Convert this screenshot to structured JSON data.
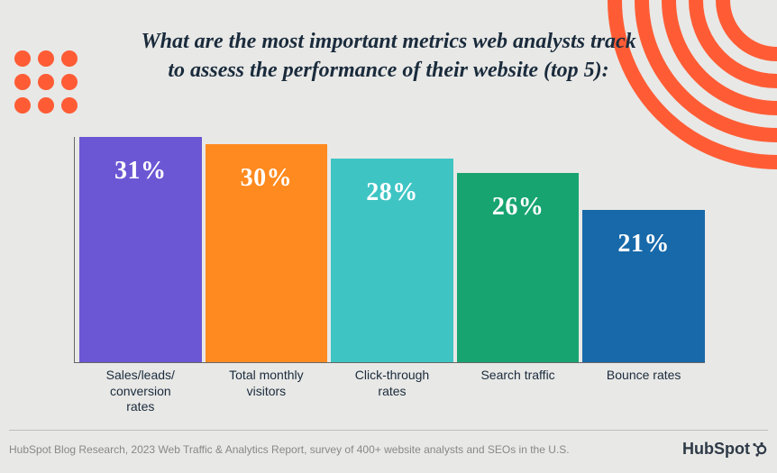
{
  "background_color": "#e8e8e6",
  "accent_color": "#ff5c35",
  "title": "What are the most important metrics web analysts track to assess the performance of their website (top 5):",
  "title_color": "#1a2b3c",
  "title_fontsize": 24,
  "chart": {
    "type": "bar",
    "max_value": 31,
    "axis_color": "#666666",
    "value_color": "#ffffff",
    "value_fontsize": 28,
    "label_color": "#1a2b3c",
    "label_fontsize": 14,
    "bar_gap": 4,
    "bars": [
      {
        "label": "Sales/leads/\nconversion\nrates",
        "value": 31,
        "display": "31%",
        "color": "#6b57d4"
      },
      {
        "label": "Total monthly\nvisitors",
        "value": 30,
        "display": "30%",
        "color": "#ff8a1f"
      },
      {
        "label": "Click-through\nrates",
        "value": 28,
        "display": "28%",
        "color": "#3fc4c4"
      },
      {
        "label": "Search traffic",
        "value": 26,
        "display": "26%",
        "color": "#17a471"
      },
      {
        "label": "Bounce rates",
        "value": 21,
        "display": "21%",
        "color": "#1769aa"
      }
    ]
  },
  "dots": {
    "rows": 3,
    "cols": 3,
    "color": "#ff5c35",
    "size": 18,
    "gap": 8
  },
  "arcs": {
    "count": 5,
    "color": "#ff5c35",
    "stroke_width": 16
  },
  "footer_text": "HubSpot Blog Research, 2023 Web Traffic & Analytics Report, survey of 400+ website analysts and SEOs in the U.S.",
  "footer_color": "#888888",
  "logo_text": "HubSpot",
  "logo_color": "#2e3a47"
}
